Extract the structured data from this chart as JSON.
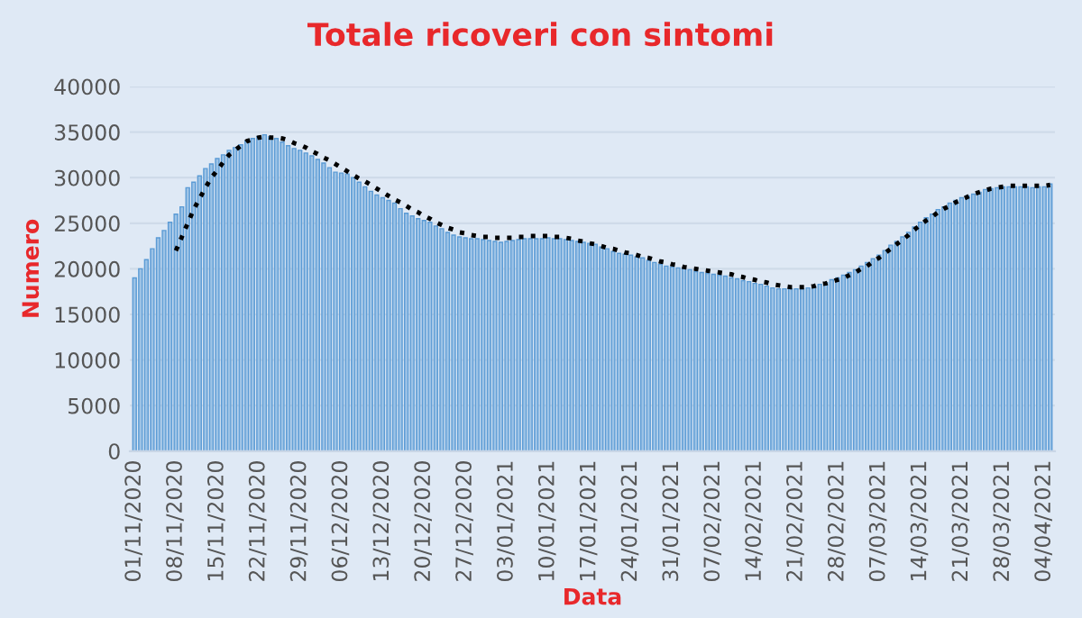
{
  "chart_data": {
    "type": "bar",
    "title": "Totale ricoveri con sintomi",
    "xlabel": "Data",
    "ylabel": "Numero",
    "categories": [
      "01/11/2020",
      null,
      null,
      null,
      null,
      null,
      null,
      "08/11/2020",
      null,
      null,
      null,
      null,
      null,
      null,
      "15/11/2020",
      null,
      null,
      null,
      null,
      null,
      null,
      "22/11/2020",
      null,
      null,
      null,
      null,
      null,
      null,
      "29/11/2020",
      null,
      null,
      null,
      null,
      null,
      null,
      "06/12/2020",
      null,
      null,
      null,
      null,
      null,
      null,
      "13/12/2020",
      null,
      null,
      null,
      null,
      null,
      null,
      "20/12/2020",
      null,
      null,
      null,
      null,
      null,
      null,
      "27/12/2020",
      null,
      null,
      null,
      null,
      null,
      null,
      "03/01/2021",
      null,
      null,
      null,
      null,
      null,
      null,
      "10/01/2021",
      null,
      null,
      null,
      null,
      null,
      null,
      "17/01/2021",
      null,
      null,
      null,
      null,
      null,
      null,
      "24/01/2021",
      null,
      null,
      null,
      null,
      null,
      null,
      "31/01/2021",
      null,
      null,
      null,
      null,
      null,
      null,
      "07/02/2021",
      null,
      null,
      null,
      null,
      null,
      null,
      "14/02/2021",
      null,
      null,
      null,
      null,
      null,
      null,
      "21/02/2021",
      null,
      null,
      null,
      null,
      null,
      null,
      "28/02/2021",
      null,
      null,
      null,
      null,
      null,
      null,
      "07/03/2021",
      null,
      null,
      null,
      null,
      null,
      null,
      "14/03/2021",
      null,
      null,
      null,
      null,
      null,
      null,
      "21/03/2021",
      null,
      null,
      null,
      null,
      null,
      null,
      "28/03/2021",
      null,
      null,
      null,
      null,
      null,
      null,
      "04/04/2021",
      null
    ],
    "series": [
      {
        "color": "#9dc3e6",
        "values": [
          19000,
          20000,
          21000,
          22200,
          23400,
          24200,
          25100,
          26000,
          26800,
          28900,
          29500,
          30200,
          31000,
          31500,
          32100,
          32500,
          33000,
          33300,
          33600,
          34000,
          34300,
          34500,
          34700,
          34500,
          34300,
          33900,
          33500,
          33200,
          33000,
          32700,
          32400,
          32000,
          31600,
          31100,
          30600,
          30500,
          30400,
          30000,
          29500,
          29000,
          28500,
          28100,
          27800,
          27500,
          27200,
          26600,
          26100,
          25800,
          25500,
          25300,
          25100,
          24700,
          24400,
          24000,
          23700,
          23500,
          23400,
          23300,
          23300,
          23200,
          23100,
          23000,
          22900,
          23000,
          23100,
          23200,
          23300,
          23300,
          23300,
          23300,
          23400,
          23300,
          23300,
          23200,
          23100,
          23000,
          22900,
          22800,
          22700,
          22400,
          22200,
          21900,
          21700,
          21600,
          21500,
          21300,
          21200,
          20900,
          20700,
          20500,
          20300,
          20200,
          20100,
          20000,
          19900,
          19700,
          19600,
          19500,
          19400,
          19300,
          19200,
          19000,
          18900,
          18700,
          18600,
          18400,
          18300,
          18100,
          17900,
          17800,
          17800,
          17800,
          17800,
          17800,
          17900,
          18100,
          18300,
          18500,
          18800,
          19000,
          19300,
          19600,
          19900,
          20300,
          20700,
          21100,
          21500,
          22000,
          22600,
          23000,
          23500,
          24000,
          24600,
          25100,
          25600,
          26000,
          26500,
          26800,
          27200,
          27500,
          27800,
          28000,
          28200,
          28400,
          28700,
          28800,
          28900,
          29000,
          29000,
          29000,
          29000,
          29000,
          28900,
          29000,
          29000,
          29300
        ]
      },
      {
        "type": "line",
        "color": "#000000",
        "line_style": "dotted",
        "values": [
          null,
          null,
          null,
          null,
          null,
          null,
          null,
          22000,
          23500,
          25000,
          26500,
          27700,
          28900,
          30000,
          30800,
          31700,
          32500,
          33000,
          33500,
          34000,
          34200,
          34400,
          34500,
          34400,
          34400,
          34300,
          34100,
          33800,
          33600,
          33300,
          32900,
          32600,
          32200,
          31900,
          31500,
          31100,
          30700,
          30300,
          29900,
          29600,
          29200,
          28800,
          28400,
          28000,
          27600,
          27300,
          26900,
          26500,
          26200,
          25800,
          25500,
          25100,
          24800,
          24500,
          24300,
          24000,
          23900,
          23700,
          23600,
          23500,
          23500,
          23400,
          23400,
          23400,
          23400,
          23500,
          23500,
          23600,
          23600,
          23600,
          23600,
          23500,
          23500,
          23400,
          23300,
          23100,
          23000,
          22800,
          22700,
          22500,
          22300,
          22200,
          22000,
          21800,
          21700,
          21500,
          21300,
          21200,
          21000,
          20800,
          20700,
          20500,
          20400,
          20200,
          20100,
          20000,
          19900,
          19800,
          19700,
          19600,
          19500,
          19400,
          19200,
          19100,
          18900,
          18800,
          18600,
          18500,
          18300,
          18200,
          18100,
          18000,
          18000,
          18000,
          18000,
          18100,
          18300,
          18400,
          18600,
          18800,
          19000,
          19300,
          19600,
          20000,
          20300,
          20800,
          21200,
          21700,
          22200,
          22700,
          23200,
          23700,
          24300,
          24800,
          25300,
          25700,
          26200,
          26600,
          26900,
          27300,
          27600,
          27900,
          28200,
          28400,
          28600,
          28800,
          28900,
          29000,
          29100,
          29100,
          29100,
          29100,
          29100,
          29100,
          29100,
          29200
        ]
      }
    ],
    "ylim": [
      0,
      40000
    ],
    "yticks": [
      0,
      5000,
      10000,
      15000,
      20000,
      25000,
      30000,
      35000,
      40000
    ],
    "grid": "y",
    "marker": "none"
  }
}
